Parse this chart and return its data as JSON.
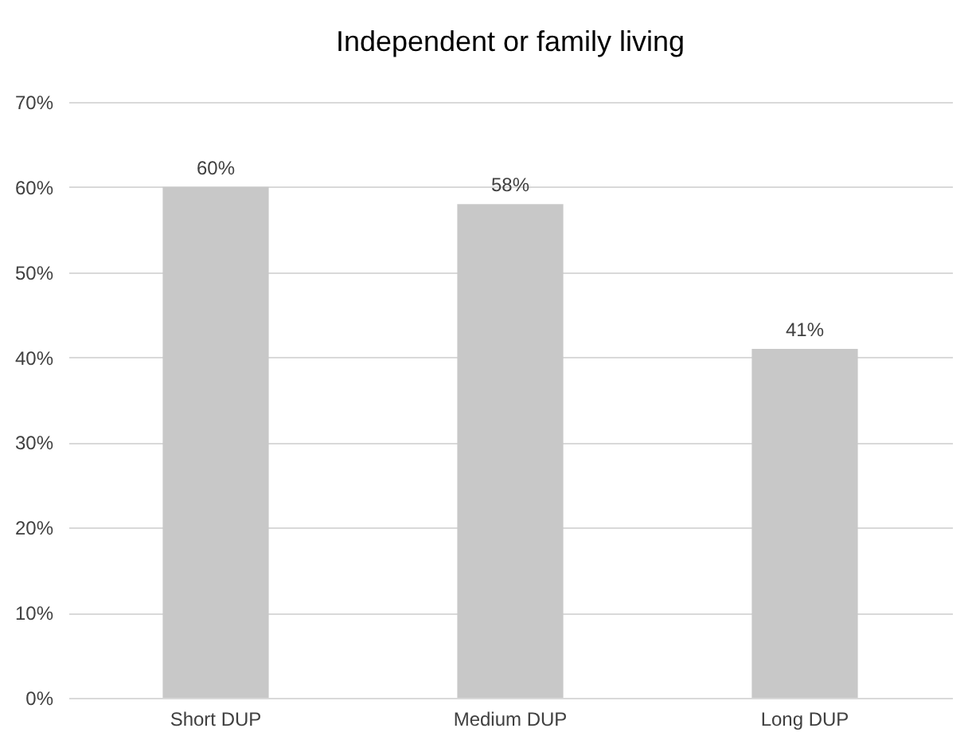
{
  "chart_data": {
    "type": "bar",
    "title": "Independent or family living",
    "categories": [
      "Short DUP",
      "Medium DUP",
      "Long DUP"
    ],
    "values": [
      60,
      58,
      41
    ],
    "color": "#c8c8c8",
    "value_labels": [
      "60%",
      "58%",
      "41%"
    ],
    "ylim": [
      0,
      70
    ],
    "yticks": [
      {
        "value": 0,
        "label": "0%"
      },
      {
        "value": 10,
        "label": "10%"
      },
      {
        "value": 20,
        "label": "20%"
      },
      {
        "value": 30,
        "label": "30%"
      },
      {
        "value": 40,
        "label": "40%"
      },
      {
        "value": 50,
        "label": "50%"
      },
      {
        "value": 60,
        "label": "60%"
      },
      {
        "value": 70,
        "label": "70%"
      }
    ],
    "grid": "y"
  }
}
